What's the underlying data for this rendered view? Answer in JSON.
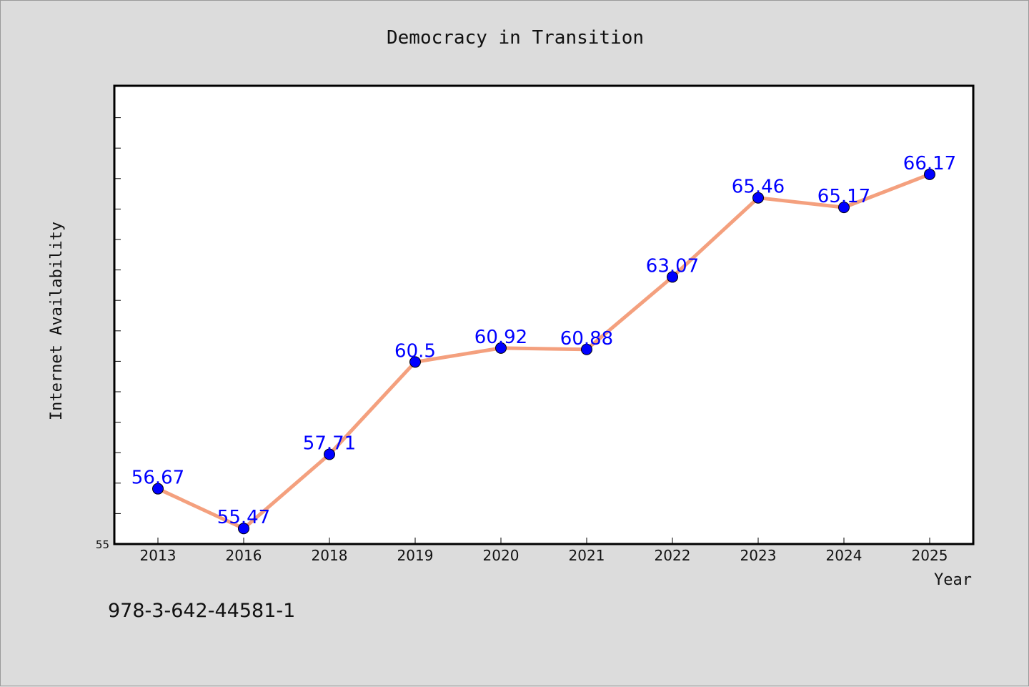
{
  "chart_data": {
    "type": "line",
    "title": "Democracy in Transition",
    "xlabel": "Year",
    "ylabel": "Internet Availability",
    "categories": [
      "2013",
      "2016",
      "2018",
      "2019",
      "2020",
      "2021",
      "2022",
      "2023",
      "2024",
      "2025"
    ],
    "values": [
      56.67,
      55.47,
      57.71,
      60.5,
      60.92,
      60.88,
      63.07,
      65.46,
      65.17,
      66.17
    ],
    "data_labels": [
      "56.67",
      "55.47",
      "57.71",
      "60.5",
      "60.92",
      "60.88",
      "63.07",
      "65.46",
      "65.17",
      "66.17"
    ],
    "ylim": [
      55,
      70
    ],
    "yticks_labeled": [
      "55"
    ],
    "grid": false,
    "legend": "none",
    "line_color": "#f4a07e",
    "marker_color": "#0000ff",
    "label_color": "#0000ff"
  },
  "footer": {
    "isbn": "978-3-642-44581-1"
  }
}
